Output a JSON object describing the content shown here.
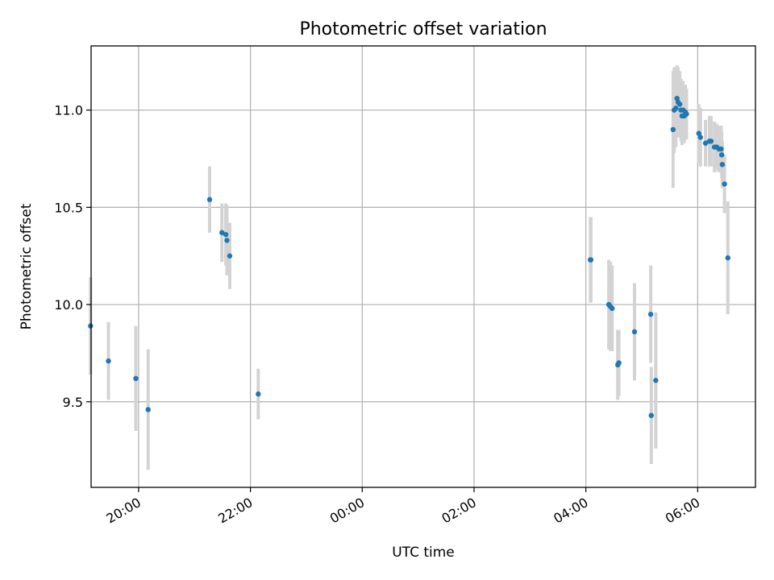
{
  "chart_data": {
    "type": "scatter",
    "title": "Photometric offset variation",
    "xlabel": "UTC time",
    "ylabel": "Photometric offset",
    "xlim": [
      "19:09",
      "07:02"
    ],
    "ylim": [
      9.06,
      11.33
    ],
    "grid": true,
    "x_unit": "UTC time (hours since 00:00; 19:00 = -5.0)",
    "x_ticks": [
      {
        "value": -4.0,
        "label": "20:00"
      },
      {
        "value": -2.0,
        "label": "22:00"
      },
      {
        "value": 0.0,
        "label": "00:00"
      },
      {
        "value": 2.0,
        "label": "02:00"
      },
      {
        "value": 4.0,
        "label": "04:00"
      },
      {
        "value": 6.0,
        "label": "06:00"
      }
    ],
    "y_ticks": [
      {
        "value": 9.5,
        "label": "9.5"
      },
      {
        "value": 10.0,
        "label": "10.0"
      },
      {
        "value": 10.5,
        "label": "10.5"
      },
      {
        "value": 11.0,
        "label": "11.0"
      }
    ],
    "point_color": "#1f77b4",
    "errorbar_color": "#d3d3d3",
    "points": [
      {
        "x": -4.86,
        "y": 9.89,
        "err": 0.25
      },
      {
        "x": -4.54,
        "y": 9.71,
        "err": 0.2
      },
      {
        "x": -4.05,
        "y": 9.62,
        "err": 0.27
      },
      {
        "x": -3.83,
        "y": 9.46,
        "err": 0.31
      },
      {
        "x": -2.73,
        "y": 10.54,
        "err": 0.17
      },
      {
        "x": -2.51,
        "y": 10.37,
        "err": 0.15
      },
      {
        "x": -2.44,
        "y": 10.36,
        "err": 0.16
      },
      {
        "x": -2.42,
        "y": 10.33,
        "err": 0.18
      },
      {
        "x": -2.37,
        "y": 10.25,
        "err": 0.17
      },
      {
        "x": -1.86,
        "y": 9.54,
        "err": 0.13
      },
      {
        "x": 4.08,
        "y": 10.23,
        "err": 0.22
      },
      {
        "x": 4.09,
        "y": 10.23,
        "err": 0.22
      },
      {
        "x": 4.41,
        "y": 10.0,
        "err": 0.23
      },
      {
        "x": 4.44,
        "y": 9.99,
        "err": 0.23
      },
      {
        "x": 4.47,
        "y": 9.98,
        "err": 0.22
      },
      {
        "x": 4.57,
        "y": 9.69,
        "err": 0.18
      },
      {
        "x": 4.59,
        "y": 9.7,
        "err": 0.17
      },
      {
        "x": 4.87,
        "y": 9.86,
        "err": 0.25
      },
      {
        "x": 5.16,
        "y": 9.95,
        "err": 0.25
      },
      {
        "x": 5.17,
        "y": 9.43,
        "err": 0.25
      },
      {
        "x": 5.25,
        "y": 9.61,
        "err": 0.35
      },
      {
        "x": 5.56,
        "y": 10.9,
        "err": 0.3
      },
      {
        "x": 5.58,
        "y": 11.0,
        "err": 0.22
      },
      {
        "x": 5.61,
        "y": 11.01,
        "err": 0.2
      },
      {
        "x": 5.63,
        "y": 11.06,
        "err": 0.17
      },
      {
        "x": 5.65,
        "y": 11.04,
        "err": 0.18
      },
      {
        "x": 5.68,
        "y": 11.03,
        "err": 0.17
      },
      {
        "x": 5.7,
        "y": 11.0,
        "err": 0.16
      },
      {
        "x": 5.72,
        "y": 10.97,
        "err": 0.15
      },
      {
        "x": 5.74,
        "y": 11.0,
        "err": 0.15
      },
      {
        "x": 5.76,
        "y": 10.97,
        "err": 0.14
      },
      {
        "x": 5.78,
        "y": 10.99,
        "err": 0.14
      },
      {
        "x": 5.8,
        "y": 10.98,
        "err": 0.13
      },
      {
        "x": 6.02,
        "y": 10.88,
        "err": 0.15
      },
      {
        "x": 6.05,
        "y": 10.86,
        "err": 0.15
      },
      {
        "x": 6.14,
        "y": 10.83,
        "err": 0.12
      },
      {
        "x": 6.21,
        "y": 10.84,
        "err": 0.13
      },
      {
        "x": 6.24,
        "y": 10.84,
        "err": 0.13
      },
      {
        "x": 6.3,
        "y": 10.81,
        "err": 0.13
      },
      {
        "x": 6.34,
        "y": 10.81,
        "err": 0.12
      },
      {
        "x": 6.38,
        "y": 10.8,
        "err": 0.12
      },
      {
        "x": 6.42,
        "y": 10.8,
        "err": 0.12
      },
      {
        "x": 6.43,
        "y": 10.77,
        "err": 0.12
      },
      {
        "x": 6.44,
        "y": 10.72,
        "err": 0.12
      },
      {
        "x": 6.48,
        "y": 10.62,
        "err": 0.15
      },
      {
        "x": 6.54,
        "y": 10.24,
        "err": 0.29
      }
    ]
  }
}
